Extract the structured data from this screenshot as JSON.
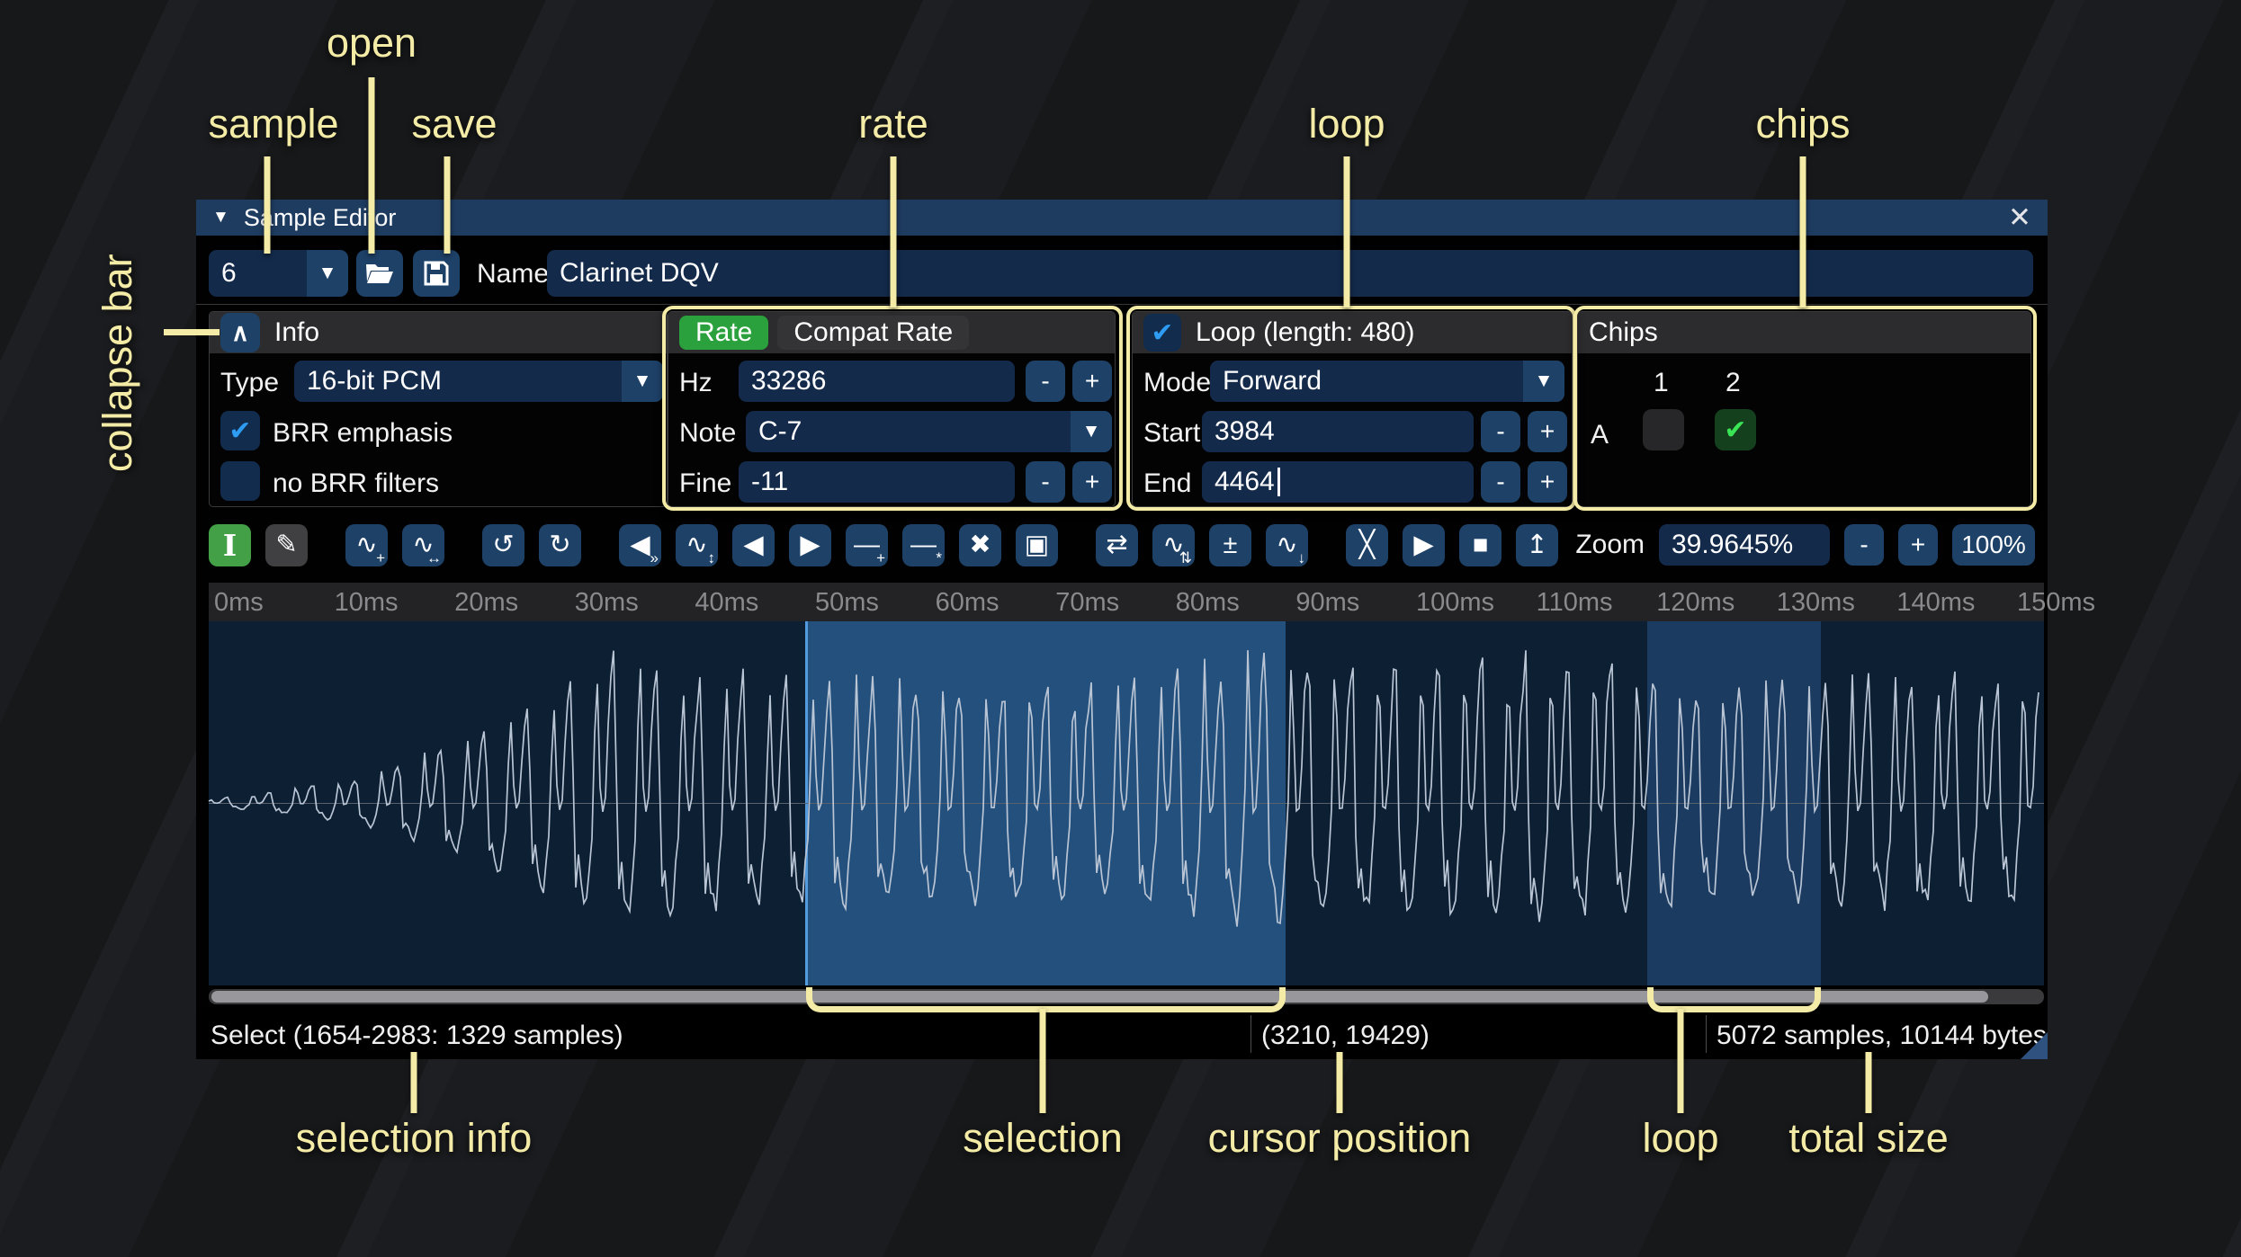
{
  "icons": {
    "dropdown": "▼",
    "check": "✔",
    "chips_check": "✔",
    "chevron_up": "∧",
    "close": "✕",
    "window_collapse": "▼"
  },
  "steppers": {
    "minus": "-",
    "plus": "+"
  },
  "annotations": {
    "sample": "sample",
    "open": "open",
    "save": "save",
    "rate": "rate",
    "loop_top": "loop",
    "chips": "chips",
    "collapse_bar": "collapse bar",
    "selection_info": "selection info",
    "selection": "selection",
    "cursor_position": "cursor position",
    "loop_bottom": "loop",
    "total_size": "total size"
  },
  "window": {
    "title": "Sample Editor",
    "sample_number": "6",
    "name_label": "Name",
    "name_value": "Clarinet DQV",
    "info": {
      "header": "Info",
      "type_label": "Type",
      "type_value": "16-bit PCM",
      "brr_emphasis_label": "BRR emphasis",
      "no_brr_filters_label": "no BRR filters"
    },
    "rate": {
      "tab_rate": "Rate",
      "tab_compat": "Compat Rate",
      "hz_label": "Hz",
      "hz_value": "33286",
      "note_label": "Note",
      "note_value": "C-7",
      "fine_label": "Fine",
      "fine_value": "-11"
    },
    "loop": {
      "header": "Loop (length: 480)",
      "mode_label": "Mode",
      "mode_value": "Forward",
      "start_label": "Start",
      "start_value": "3984",
      "end_label": "End",
      "end_value": "4464"
    },
    "chips": {
      "header": "Chips",
      "col_1": "1",
      "col_2": "2",
      "row_a": "A"
    },
    "toolbar": {
      "zoom_label": "Zoom",
      "zoom_value": "39.9645%",
      "zoom_minus": "-",
      "zoom_plus": "+",
      "zoom_reset": "100%",
      "buttons": [
        {
          "name": "select",
          "glyph": "I",
          "style": "active serif"
        },
        {
          "name": "draw",
          "glyph": "✎",
          "style": "dark"
        },
        {
          "name": "gap"
        },
        {
          "name": "record",
          "glyph": "∿",
          "badge": "+"
        },
        {
          "name": "resize",
          "glyph": "∿",
          "badge": "↔"
        },
        {
          "name": "gap"
        },
        {
          "name": "undo",
          "glyph": "↺"
        },
        {
          "name": "redo",
          "glyph": "↻"
        },
        {
          "name": "gap"
        },
        {
          "name": "amplify",
          "glyph": "◀",
          "badge": "»"
        },
        {
          "name": "normalize",
          "glyph": "∿",
          "badge": "↕"
        },
        {
          "name": "fade-in",
          "glyph": "◀"
        },
        {
          "name": "fade-out",
          "glyph": "▶"
        },
        {
          "name": "insert-silence",
          "glyph": "―",
          "badge": "+"
        },
        {
          "name": "apply-silence",
          "glyph": "―",
          "badge": "*"
        },
        {
          "name": "delete",
          "glyph": "✖"
        },
        {
          "name": "trim",
          "glyph": "▣"
        },
        {
          "name": "gap"
        },
        {
          "name": "reverse",
          "glyph": "⇄"
        },
        {
          "name": "invert",
          "glyph": "∿",
          "badge": "⇅"
        },
        {
          "name": "sign",
          "glyph": "±"
        },
        {
          "name": "filter",
          "glyph": "∿",
          "badge": "↓"
        },
        {
          "name": "gap"
        },
        {
          "name": "crossfade",
          "glyph": "╳"
        },
        {
          "name": "play",
          "glyph": "▶"
        },
        {
          "name": "stop",
          "glyph": "■"
        },
        {
          "name": "upload",
          "glyph": "↥"
        }
      ]
    },
    "ruler_ticks": [
      "0ms",
      "10ms",
      "20ms",
      "30ms",
      "40ms",
      "50ms",
      "60ms",
      "70ms",
      "80ms",
      "90ms",
      "100ms",
      "110ms",
      "120ms",
      "130ms",
      "140ms",
      "150ms"
    ],
    "status": {
      "selection": "Select (1654-2983: 1329 samples)",
      "cursor": "(3210, 19429)",
      "size": "5072 samples, 10144 bytes"
    }
  },
  "waveform": {
    "sample_rate_hz": 33286,
    "total_samples": 5072,
    "total_bytes": 10144,
    "selection_start": 1654,
    "selection_end": 2983,
    "loop_start": 3984,
    "loop_end": 4464,
    "view_start_ms": 0,
    "view_end_ms": 150
  }
}
